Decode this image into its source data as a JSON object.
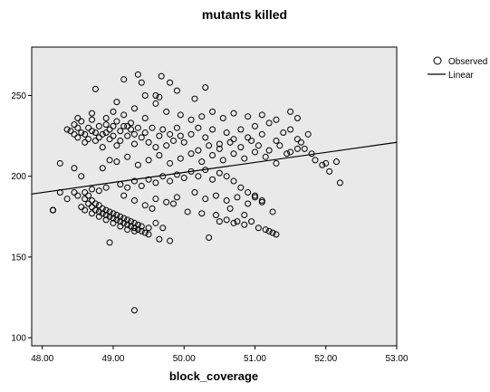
{
  "colors": {
    "plot_background": "#e9e9e9",
    "marker_stroke": "#000000",
    "fit_line": "#000000",
    "axis": "#000000"
  },
  "chart_data": {
    "type": "scatter",
    "title": "mutants killed",
    "xlabel": "block_coverage",
    "ylabel": "",
    "xlim": [
      48.0,
      53.0
    ],
    "ylim": [
      95,
      280
    ],
    "xticks": [
      48.0,
      49.0,
      50.0,
      51.0,
      52.0,
      53.0
    ],
    "xtick_labels": [
      "48.00",
      "49.00",
      "50.00",
      "51.00",
      "52.00",
      "53.00"
    ],
    "yticks": [
      100,
      150,
      200,
      250
    ],
    "ytick_labels": [
      "100",
      "150",
      "200",
      "250"
    ],
    "legend": {
      "placement": "outside-top-right",
      "entries": [
        {
          "label": "Observed",
          "marker": "open-circle"
        },
        {
          "label": "Linear",
          "marker": "line"
        }
      ]
    },
    "grid": false,
    "fit_line": {
      "type": "linear",
      "x": [
        47.85,
        53.0
      ],
      "y": [
        189.0,
        221.0
      ]
    },
    "series": [
      {
        "name": "Observed",
        "marker": "open-circle",
        "points": [
          [
            48.15,
            179
          ],
          [
            48.15,
            179
          ],
          [
            48.35,
            229
          ],
          [
            48.4,
            228
          ],
          [
            48.45,
            232
          ],
          [
            48.45,
            226
          ],
          [
            48.5,
            224
          ],
          [
            48.5,
            230
          ],
          [
            48.55,
            227
          ],
          [
            48.55,
            234
          ],
          [
            48.6,
            226
          ],
          [
            48.6,
            221
          ],
          [
            48.65,
            230
          ],
          [
            48.65,
            223
          ],
          [
            48.7,
            228
          ],
          [
            48.7,
            235
          ],
          [
            48.75,
            227
          ],
          [
            48.75,
            222
          ],
          [
            48.8,
            231
          ],
          [
            48.8,
            224
          ],
          [
            48.85,
            226
          ],
          [
            48.85,
            218
          ],
          [
            48.9,
            232
          ],
          [
            48.9,
            227
          ],
          [
            48.95,
            229
          ],
          [
            48.95,
            223
          ],
          [
            49.0,
            231
          ],
          [
            49.0,
            225
          ],
          [
            49.05,
            234
          ],
          [
            49.05,
            219
          ],
          [
            49.1,
            228
          ],
          [
            49.1,
            222
          ],
          [
            49.15,
            231
          ],
          [
            49.2,
            225
          ],
          [
            49.25,
            229
          ],
          [
            49.25,
            233
          ],
          [
            49.3,
            220
          ],
          [
            49.3,
            226
          ],
          [
            49.35,
            230
          ],
          [
            49.4,
            224
          ],
          [
            49.45,
            227
          ],
          [
            49.5,
            221
          ],
          [
            49.55,
            230
          ],
          [
            49.6,
            218
          ],
          [
            49.65,
            225
          ],
          [
            49.7,
            229
          ],
          [
            49.75,
            219
          ],
          [
            49.8,
            226
          ],
          [
            49.85,
            222
          ],
          [
            49.9,
            230
          ],
          [
            49.95,
            225
          ],
          [
            50.0,
            221
          ],
          [
            50.1,
            226
          ],
          [
            50.2,
            230
          ],
          [
            50.3,
            224
          ],
          [
            50.4,
            229
          ],
          [
            50.5,
            220
          ],
          [
            50.6,
            227
          ],
          [
            50.7,
            223
          ],
          [
            50.8,
            229
          ],
          [
            50.9,
            224
          ],
          [
            51.0,
            231
          ],
          [
            51.1,
            226
          ],
          [
            51.2,
            233
          ],
          [
            51.3,
            222
          ],
          [
            51.4,
            227
          ],
          [
            51.5,
            229
          ],
          [
            51.6,
            223
          ],
          [
            51.7,
            217
          ],
          [
            51.8,
            214
          ],
          [
            48.5,
            236
          ],
          [
            48.7,
            239
          ],
          [
            48.9,
            236
          ],
          [
            49.0,
            240
          ],
          [
            49.15,
            238
          ],
          [
            49.3,
            242
          ],
          [
            49.45,
            236
          ],
          [
            49.6,
            245
          ],
          [
            49.75,
            240
          ],
          [
            49.95,
            238
          ],
          [
            50.1,
            235
          ],
          [
            50.25,
            237
          ],
          [
            50.4,
            240
          ],
          [
            50.55,
            236
          ],
          [
            50.7,
            239
          ],
          [
            50.9,
            237
          ],
          [
            51.1,
            238
          ],
          [
            51.3,
            235
          ],
          [
            51.5,
            240
          ],
          [
            51.6,
            236
          ],
          [
            48.75,
            254
          ],
          [
            49.05,
            246
          ],
          [
            49.15,
            260
          ],
          [
            49.2,
            231
          ],
          [
            49.35,
            263
          ],
          [
            49.4,
            258
          ],
          [
            49.45,
            250
          ],
          [
            49.65,
            249
          ],
          [
            49.68,
            262
          ],
          [
            49.8,
            258
          ],
          [
            49.9,
            253
          ],
          [
            50.15,
            248
          ],
          [
            50.3,
            255
          ],
          [
            49.6,
            250
          ],
          [
            48.6,
            186
          ],
          [
            48.65,
            183
          ],
          [
            48.7,
            181
          ],
          [
            48.75,
            179
          ],
          [
            48.8,
            178
          ],
          [
            48.85,
            177
          ],
          [
            48.9,
            176
          ],
          [
            48.95,
            175
          ],
          [
            49.0,
            174
          ],
          [
            49.05,
            173
          ],
          [
            49.1,
            172
          ],
          [
            49.15,
            171
          ],
          [
            49.2,
            170
          ],
          [
            49.25,
            169
          ],
          [
            49.3,
            168
          ],
          [
            49.35,
            167
          ],
          [
            49.4,
            166
          ],
          [
            49.45,
            165
          ],
          [
            49.5,
            164
          ],
          [
            48.65,
            188
          ],
          [
            48.7,
            185
          ],
          [
            48.75,
            183
          ],
          [
            48.8,
            182
          ],
          [
            48.85,
            180
          ],
          [
            48.9,
            179
          ],
          [
            48.95,
            178
          ],
          [
            49.0,
            177
          ],
          [
            49.05,
            176
          ],
          [
            49.1,
            175
          ],
          [
            49.15,
            174
          ],
          [
            49.2,
            173
          ],
          [
            49.25,
            172
          ],
          [
            49.3,
            171
          ],
          [
            49.35,
            170
          ],
          [
            49.4,
            169
          ],
          [
            48.55,
            181
          ],
          [
            48.6,
            179
          ],
          [
            48.7,
            177
          ],
          [
            48.8,
            175
          ],
          [
            48.9,
            173
          ],
          [
            49.0,
            171
          ],
          [
            49.1,
            169
          ],
          [
            49.2,
            167
          ],
          [
            49.3,
            166
          ],
          [
            49.5,
            168
          ],
          [
            49.6,
            171
          ],
          [
            49.7,
            168
          ],
          [
            49.8,
            160
          ],
          [
            49.65,
            161
          ],
          [
            50.35,
            162
          ],
          [
            50.5,
            172
          ],
          [
            50.6,
            173
          ],
          [
            50.7,
            171
          ],
          [
            50.75,
            172
          ],
          [
            50.85,
            170
          ],
          [
            50.95,
            172
          ],
          [
            51.05,
            168
          ],
          [
            51.15,
            167
          ],
          [
            51.25,
            165
          ],
          [
            51.3,
            164
          ],
          [
            51.2,
            166
          ],
          [
            48.95,
            159
          ],
          [
            49.3,
            117
          ],
          [
            48.45,
            190
          ],
          [
            48.5,
            188
          ],
          [
            48.6,
            190
          ],
          [
            48.7,
            192
          ],
          [
            48.8,
            191
          ],
          [
            48.9,
            193
          ],
          [
            49.1,
            195
          ],
          [
            49.2,
            193
          ],
          [
            49.3,
            197
          ],
          [
            49.4,
            194
          ],
          [
            49.5,
            198
          ],
          [
            49.6,
            196
          ],
          [
            49.7,
            200
          ],
          [
            49.8,
            197
          ],
          [
            49.9,
            201
          ],
          [
            50.0,
            199
          ],
          [
            50.1,
            203
          ],
          [
            50.2,
            200
          ],
          [
            50.3,
            204
          ],
          [
            50.4,
            198
          ],
          [
            50.5,
            202
          ],
          [
            50.6,
            200
          ],
          [
            50.7,
            197
          ],
          [
            50.8,
            193
          ],
          [
            50.9,
            190
          ],
          [
            51.0,
            187
          ],
          [
            51.1,
            184
          ],
          [
            49.05,
            209
          ],
          [
            49.2,
            212
          ],
          [
            49.35,
            207
          ],
          [
            49.5,
            210
          ],
          [
            49.65,
            213
          ],
          [
            49.8,
            208
          ],
          [
            49.95,
            211
          ],
          [
            50.1,
            214
          ],
          [
            50.25,
            209
          ],
          [
            50.4,
            213
          ],
          [
            50.55,
            210
          ],
          [
            50.7,
            214
          ],
          [
            50.85,
            211
          ],
          [
            51.0,
            215
          ],
          [
            51.15,
            212
          ],
          [
            51.3,
            208
          ],
          [
            51.45,
            214
          ],
          [
            51.6,
            217
          ],
          [
            50.2,
            216
          ],
          [
            50.35,
            219
          ],
          [
            50.5,
            217
          ],
          [
            50.65,
            221
          ],
          [
            50.8,
            218
          ],
          [
            50.95,
            222
          ],
          [
            51.05,
            219
          ],
          [
            51.2,
            216
          ],
          [
            51.35,
            219
          ],
          [
            51.5,
            215
          ],
          [
            51.65,
            221
          ],
          [
            51.75,
            226
          ],
          [
            51.85,
            210
          ],
          [
            51.95,
            207
          ],
          [
            52.0,
            208
          ],
          [
            52.05,
            203
          ],
          [
            52.15,
            209
          ],
          [
            52.2,
            196
          ],
          [
            50.15,
            190
          ],
          [
            50.3,
            186
          ],
          [
            50.45,
            188
          ],
          [
            50.6,
            185
          ],
          [
            50.75,
            187
          ],
          [
            50.9,
            183
          ],
          [
            51.0,
            188
          ],
          [
            51.1,
            185
          ],
          [
            49.9,
            187
          ],
          [
            49.75,
            184
          ],
          [
            49.6,
            186
          ],
          [
            49.45,
            182
          ],
          [
            49.3,
            185
          ],
          [
            48.25,
            208
          ],
          [
            48.35,
            186
          ],
          [
            48.15,
            179
          ],
          [
            48.25,
            190
          ],
          [
            48.45,
            205
          ],
          [
            48.55,
            200
          ],
          [
            48.85,
            205
          ],
          [
            48.95,
            210
          ],
          [
            49.15,
            188
          ],
          [
            49.55,
            180
          ],
          [
            49.85,
            183
          ],
          [
            50.05,
            178
          ],
          [
            50.25,
            177
          ],
          [
            50.45,
            176
          ],
          [
            50.65,
            180
          ],
          [
            50.85,
            176
          ],
          [
            51.25,
            178
          ]
        ]
      }
    ]
  }
}
